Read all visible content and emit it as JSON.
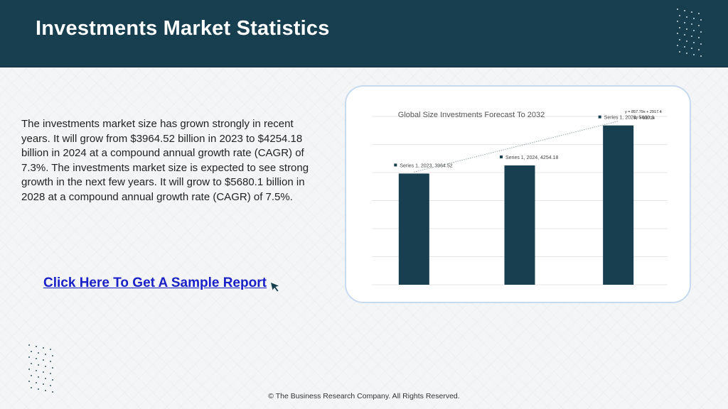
{
  "header": {
    "title": "Investments Market Statistics"
  },
  "body": {
    "paragraph": "The investments market size has grown strongly in recent years. It will grow from $3964.52 billion in 2023 to $4254.18 billion in 2024 at a compound annual growth rate (CAGR) of 7.3%. The investments market size is expected to see strong growth in the next few years. It will grow to $5680.1 billion in 2028 at a compound annual growth rate (CAGR) of 7.5%.",
    "cta_label": "Click Here To Get A Sample Report"
  },
  "icons": {
    "cursor": "cursor-arrow-icon",
    "decor": "dot-grid-icon"
  },
  "chart_data": {
    "type": "bar",
    "title": "Global Size Investments Forecast To 2032",
    "xlabel": "",
    "ylabel": "",
    "categories": [
      "2023",
      "2024",
      "2028"
    ],
    "series": [
      {
        "name": "Series 1",
        "values": [
          3964.52,
          4254.18,
          5680.1
        ]
      }
    ],
    "data_labels": [
      "Series 1, 2023, 3964.52",
      "Series 1, 2024, 4254.18",
      "Series 1, 2028, 5680.1"
    ],
    "ylim": [
      0,
      6000
    ],
    "grid": true,
    "trendline": {
      "equation": "y = 857.79x + 2917.4",
      "r_squared": "R² = 0.8724"
    },
    "colors": {
      "bar": "#173f4f",
      "grid": "#e6e6e6",
      "trend": "#9aa7ad"
    }
  },
  "footer": {
    "copyright": "© The Business Research Company. All Rights Reserved."
  },
  "colors": {
    "header_bg": "#173f4f",
    "link": "#1a20c7",
    "card_border": "#c7daf0"
  }
}
